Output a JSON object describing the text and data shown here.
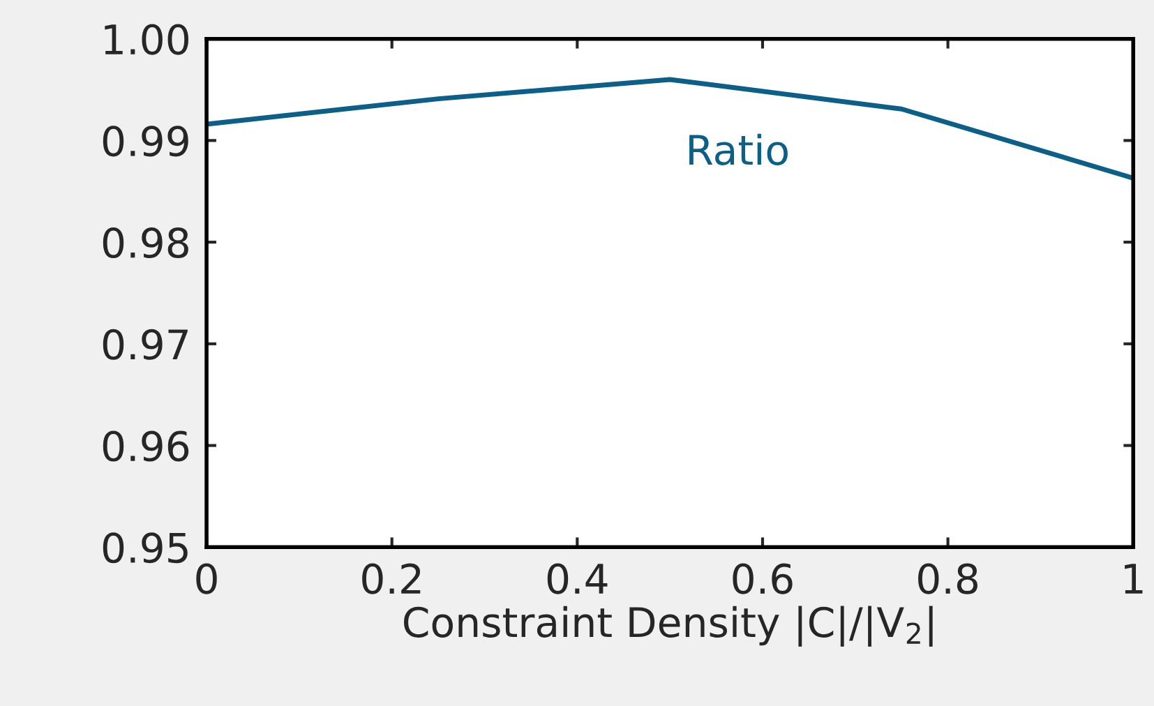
{
  "chart_data": {
    "type": "line",
    "xlabel": "Constraint Density |C|/|V$_{2}$|",
    "x": [
      0,
      0.25,
      0.5,
      0.75,
      1
    ],
    "series": [
      {
        "name": "Ratio",
        "color": "#0b5f89",
        "values": [
          0.9916,
          0.9941,
          0.996,
          0.9931,
          0.9863
        ]
      }
    ],
    "xlim": [
      0,
      1
    ],
    "xticks": [
      0,
      0.2,
      0.4,
      0.6,
      0.8,
      1
    ],
    "ylim": [
      0.95,
      1.0
    ],
    "yticks": [
      {
        "value": 0.95,
        "label": "0.95"
      },
      {
        "value": 0.96,
        "label": "0.96"
      },
      {
        "value": 0.97,
        "label": "0.97"
      },
      {
        "value": 0.98,
        "label": "0.98"
      },
      {
        "value": 0.99,
        "label": "0.99"
      },
      {
        "value": 1.0,
        "label": "1.00"
      }
    ],
    "grid": false,
    "legend": false,
    "marker": "none",
    "line_style": "solid"
  }
}
